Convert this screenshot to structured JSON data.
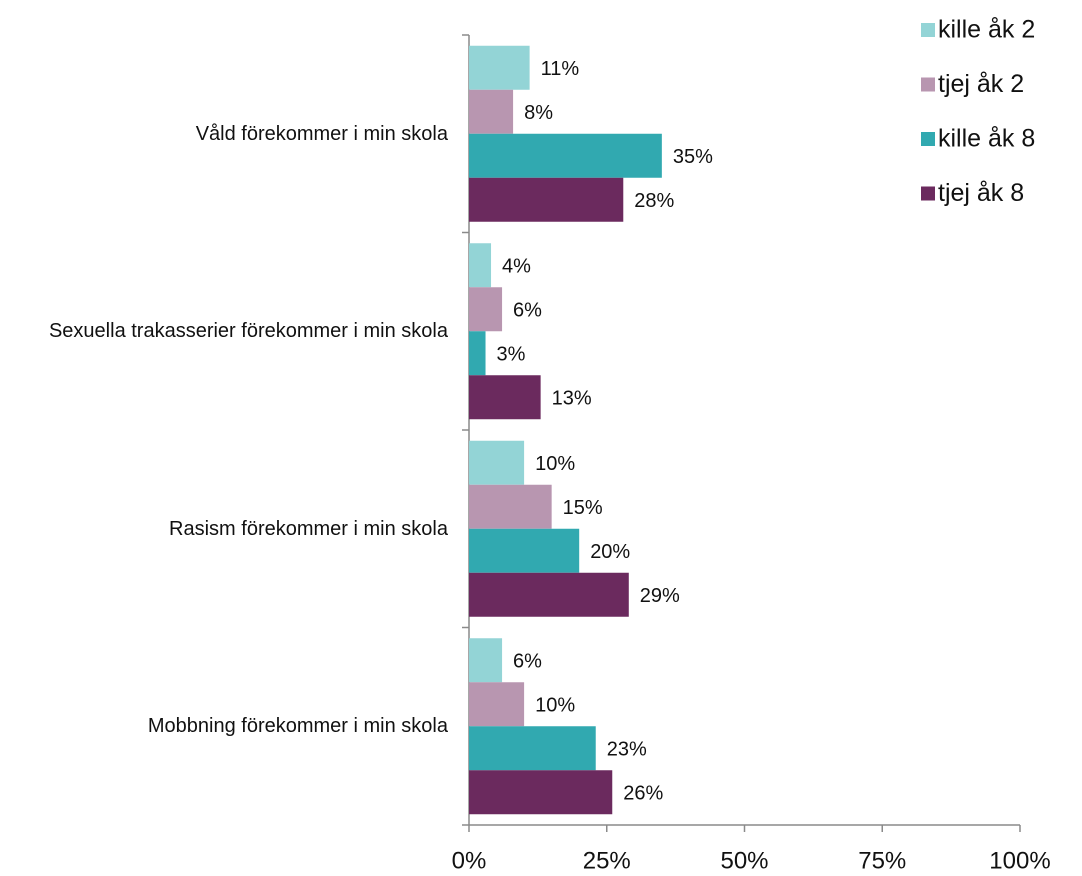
{
  "chart_data": {
    "type": "hbar",
    "categories": [
      "Våld förekommer i min skola",
      "Sexuella trakasserier förekommer i min skola",
      "Rasism förekommer i min skola",
      "Mobbning förekommer i min skola"
    ],
    "series": [
      {
        "name": "kille åk 2",
        "color": "#93d4d6",
        "values": [
          11,
          4,
          10,
          6
        ],
        "value_labels": [
          "11%",
          "4%",
          "10%",
          "6%"
        ]
      },
      {
        "name": "tjej åk 2",
        "color": "#b896b0",
        "values": [
          8,
          6,
          15,
          10
        ],
        "value_labels": [
          "8%",
          "6%",
          "15%",
          "10%"
        ]
      },
      {
        "name": "kille åk 8",
        "color": "#31a9b0",
        "values": [
          35,
          3,
          20,
          23
        ],
        "value_labels": [
          "35%",
          "3%",
          "20%",
          "23%"
        ]
      },
      {
        "name": "tjej åk 8",
        "color": "#6b2a5e",
        "values": [
          28,
          13,
          29,
          26
        ],
        "value_labels": [
          "28%",
          "13%",
          "29%",
          "26%"
        ]
      }
    ],
    "xlim": [
      0,
      100
    ],
    "xticks": [
      {
        "value": 0,
        "label": "0%"
      },
      {
        "value": 25,
        "label": "25%"
      },
      {
        "value": 50,
        "label": "50%"
      },
      {
        "value": 75,
        "label": "75%"
      },
      {
        "value": 100,
        "label": "100%"
      }
    ],
    "legend": "top-right"
  }
}
